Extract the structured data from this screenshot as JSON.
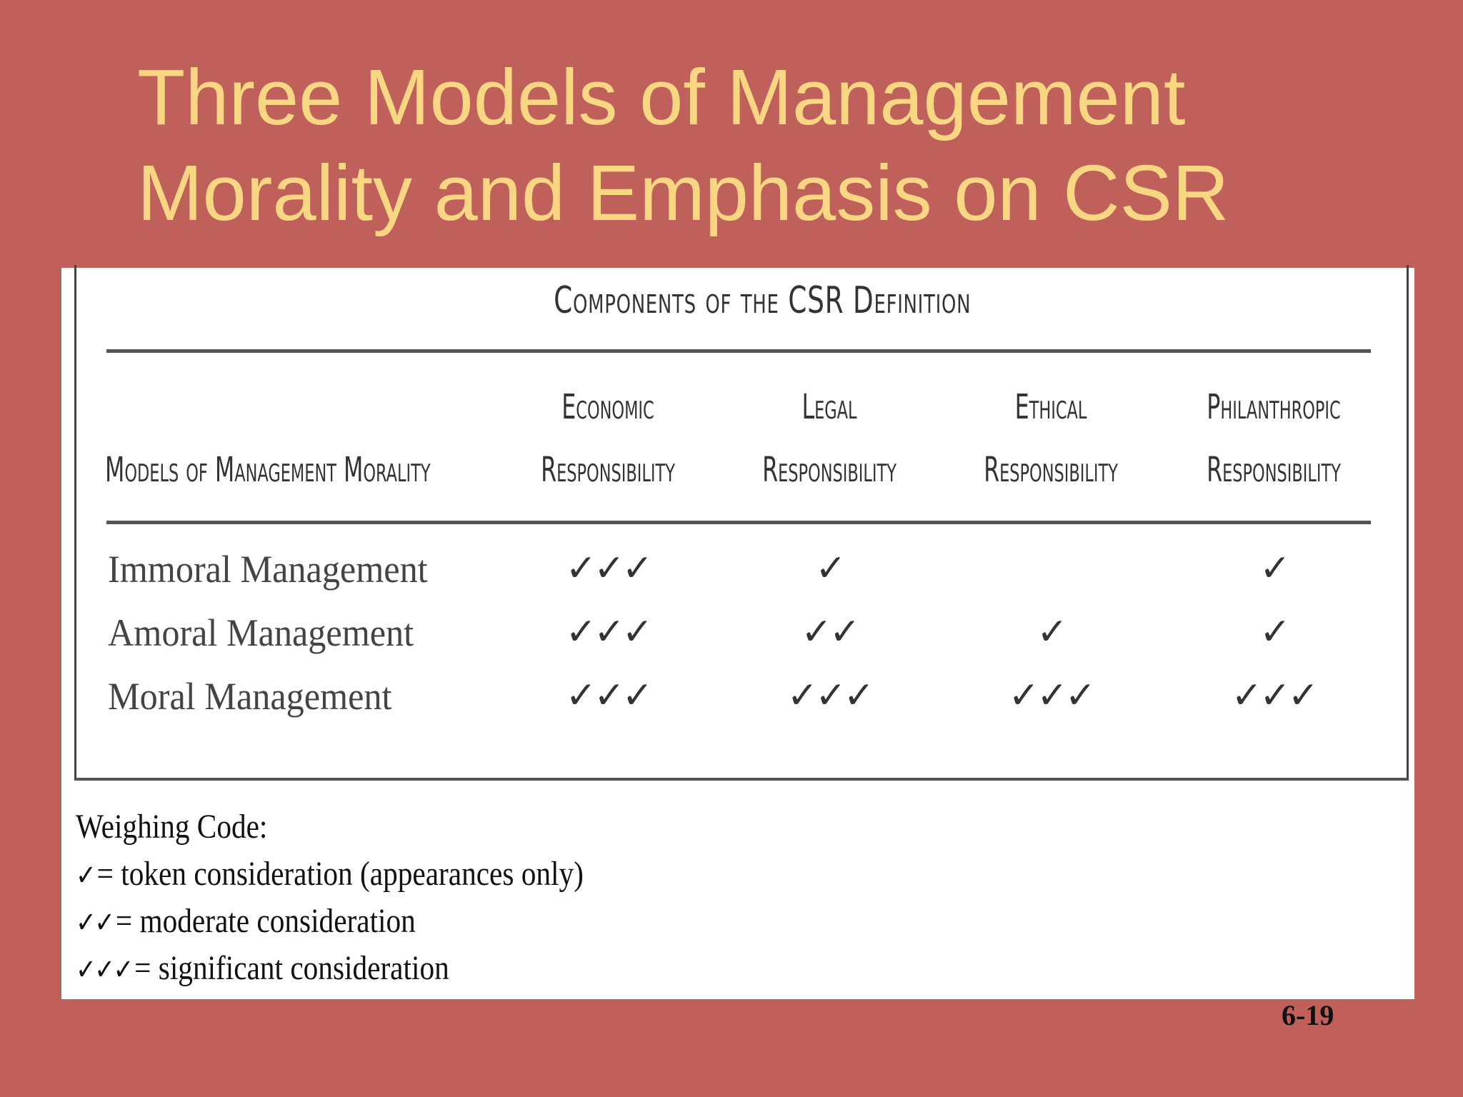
{
  "slide": {
    "title_line1": "Three Models of Management",
    "title_line2": "Morality and Emphasis on CSR",
    "page_number": "6-19"
  },
  "table": {
    "caption": "Components of the CSR Definition",
    "row_header": "Models of Management Morality",
    "columns": [
      {
        "line1": "Economic",
        "line2": "Responsibility"
      },
      {
        "line1": "Legal",
        "line2": "Responsibility"
      },
      {
        "line1": "Ethical",
        "line2": "Responsibility"
      },
      {
        "line1": "Philanthropic",
        "line2": "Responsibility"
      }
    ],
    "rows": [
      {
        "label": "Immoral Management",
        "cells": [
          "✓✓✓",
          "✓",
          "",
          "✓"
        ]
      },
      {
        "label": "Amoral Management",
        "cells": [
          "✓✓✓",
          "✓✓",
          "✓",
          "✓"
        ]
      },
      {
        "label": "Moral Management",
        "cells": [
          "✓✓✓",
          "✓✓✓",
          "✓✓✓",
          "✓✓✓"
        ]
      }
    ]
  },
  "legend": {
    "title": "Weighing Code:",
    "items": [
      {
        "mark": "✓",
        "text": "= token consideration (appearances only)"
      },
      {
        "mark": "✓✓",
        "text": "= moderate consideration"
      },
      {
        "mark": "✓✓✓",
        "text": "= significant consideration"
      }
    ]
  }
}
